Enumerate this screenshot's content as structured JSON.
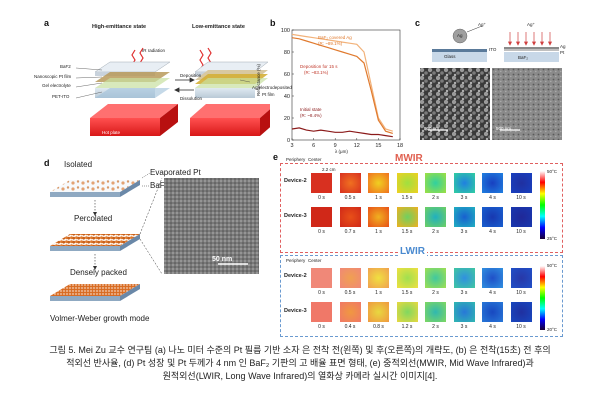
{
  "panel_a": {
    "letter": "a",
    "title_high": "High-emittance state",
    "title_low": "Low-emittance state",
    "ir_label": "IR radiation",
    "layers": [
      "BaF2",
      "Nanoscopic Pt film",
      "Gel electrolyte",
      "PET-ITO"
    ],
    "hot_plate": "Hot plate",
    "deposition": "Deposition",
    "dissolution": "Dissolution",
    "ag_label": "Ag electrodeposited",
    "pt_label": "Pt film"
  },
  "panel_b": {
    "letter": "b",
    "ylabel": "Reflectance (%)",
    "xlabel": "λ (μm)",
    "ann_ag": "BaF₂ covered Ag",
    "ann_ag_r": "(R: ~89.1%)",
    "ann_dep": "Deposition for 15 s",
    "ann_dep_r": "(R: ~83.1%)",
    "ann_init": "Initial state",
    "ann_init_r": "(R: ~8.4%)"
  },
  "panel_c": {
    "letter": "c",
    "ag": "Ag",
    "ag_plus": "Ag⁺",
    "ito": "ITO",
    "glass": "Glass",
    "baf2": "BaF₂",
    "ag_r": "Ag",
    "pt_r": "Pt",
    "scale_left": "500 nm",
    "scale_right": "500 nm"
  },
  "panel_d": {
    "letter": "d",
    "isolated": "Isolated",
    "evap_pt": "Evaporated Pt",
    "baf2": "BaF₂",
    "percolated": "Percolated",
    "dense": "Densely packed",
    "growth": "Volmer-Weber growth mode",
    "scale": "50 nm"
  },
  "panel_e": {
    "letter": "e",
    "mwir": "MWIR",
    "lwir": "LWIR",
    "periphery": "Periphery",
    "center": "Center",
    "size_label": "2.2 cm",
    "device2": "Device-2",
    "device3": "Device-3",
    "mwir_dev2_times": [
      "0 s",
      "0.5 s",
      "1 s",
      "1.5 s",
      "2 s",
      "3 s",
      "4 s",
      "10 s"
    ],
    "mwir_dev3_times": [
      "0 s",
      "0.7 s",
      "1 s",
      "1.5 s",
      "2 s",
      "3 s",
      "4 s",
      "10 s"
    ],
    "lwir_dev2_times": [
      "0 s",
      "0.5 s",
      "1 s",
      "1.5 s",
      "2 s",
      "3 s",
      "4 s",
      "10 s"
    ],
    "lwir_dev3_times": [
      "0 s",
      "0.4 s",
      "0.8 s",
      "1.2 s",
      "2 s",
      "3 s",
      "4 s",
      "10 s"
    ],
    "mwir_scale_max": "50°C",
    "mwir_scale_min": "25°C",
    "lwir_scale_max": "50°C",
    "lwir_scale_min": "20°C"
  },
  "caption": {
    "line1": "그림 5. Mei Zu 교수 연구팀 (a) 나노 미터 수준의 Pt 필름 기반 소자 은 전착 전(왼쪽) 및 후(오른쪽)의 개략도, (b) 은 전착(15초) 전 후의",
    "line2": "적외선 반사율, (d) Pt 성장 및 Pt 두께가 4 nm 인 BaF₂ 기판의 고 배율 표면 형태, (e) 중적외선(MWIR, Mid Wave Infrared)과",
    "line3": "원적외선(LWIR, Long Wave Infrared)의 열화상 카메라 실시간 이미지[4]."
  },
  "chart_data": {
    "type": "line",
    "xlabel": "λ (μm)",
    "ylabel": "Reflectance (%)",
    "xlim": [
      3,
      18
    ],
    "ylim": [
      0,
      100
    ],
    "xticks": [
      3,
      6,
      9,
      12,
      15,
      18
    ],
    "yticks": [
      0,
      20,
      40,
      60,
      80,
      100
    ],
    "x": [
      3,
      4,
      5,
      6,
      7,
      8,
      9,
      10,
      11,
      12,
      13,
      14,
      15,
      16,
      17
    ],
    "series": [
      {
        "name": "BaF₂ covered Ag (R: ~89.1%)",
        "color": "#f2b27a",
        "values": [
          96,
          95,
          94,
          93,
          92,
          91,
          90,
          89,
          88,
          87,
          80,
          50,
          20,
          10,
          8
        ]
      },
      {
        "name": "Deposition for 15 s (R: ~83.1%)",
        "color": "#e07a2e",
        "values": [
          93,
          92,
          90,
          88,
          86,
          84,
          82,
          80,
          78,
          76,
          70,
          45,
          18,
          8,
          6
        ]
      },
      {
        "name": "Initial state (R: ~8.4%)",
        "color": "#8b1a1a",
        "values": [
          10,
          11,
          9,
          8,
          9,
          8,
          7,
          7,
          8,
          7,
          6,
          5,
          5,
          4,
          3
        ]
      }
    ]
  }
}
